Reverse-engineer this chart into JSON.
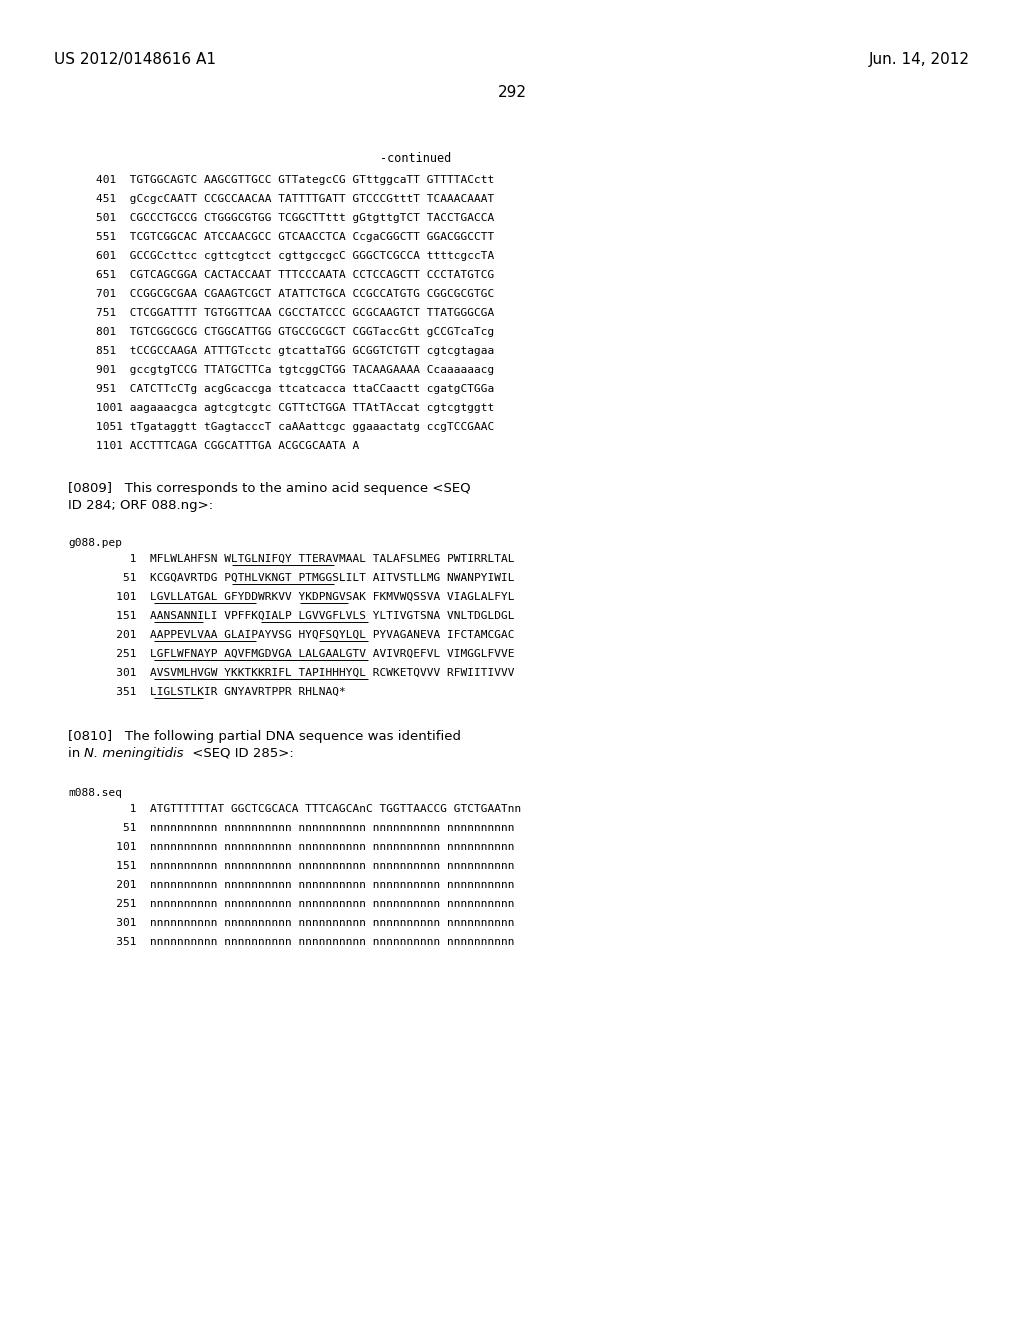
{
  "header_left": "US 2012/0148616 A1",
  "header_right": "Jun. 14, 2012",
  "page_number": "292",
  "continued_label": "-continued",
  "dna_lines": [
    "401  TGTGGCAGTC AAGCGTTGCC GTTategcCG GTttggcaTT GTTTTACctt",
    "451  gCcgcCAATT CCGCCAACAA TATTTTGATT GTCCCGtttT TCAAACAAAT",
    "501  CGCCCTGCCG CTGGGCGTGG TCGGCTTttt gGtgttgTCT TACCTGACCA",
    "551  TCGTCGGCAC ATCCAACGCC GTCAACCTCA CcgaCGGCTT GGACGGCCTT",
    "601  GCCGCcttcc cgttcgtcct cgttgccgcC GGGCTCGCCA ttttcgccTA",
    "651  CGTCAGCGGA CACTACCAAT TTTCCCAATA CCTCCAGCTT CCCTATGTCG",
    "701  CCGGCGCGAA CGAAGTCGCT ATATTCTGCA CCGCCATGTG CGGCGCGTGC",
    "751  CTCGGATTTT TGTGGTTCAA CGCCTATCCC GCGCAAGTCT TTATGGGCGA",
    "801  TGTCGGCGCG CTGGCATTGG GTGCCGCGCT CGGTaccGtt gCCGTcaTcg",
    "851  tCCGCCAAGA ATTTGTcctc gtcattaTGG GCGGTCTGTT cgtcgtagaa",
    "901  gccgtgTCCG TTATGCTTCa tgtcggCTGG TACAAGAAAA Ccaaaaaacg",
    "951  CATCTTcCTg acgGcaccga ttcatcacca ttaCCaactt cgatgCTGGa",
    "1001 aagaaacgca agtcgtcgtc CGTTtCTGGA TTAtTAccat cgtcgtggtt",
    "1051 tTgataggtt tGagtacccT caAAattcgc ggaaactatg ccgTCCGAAC",
    "1101 ACCTTTCAGA CGGCATTTGA ACGCGCAATA A"
  ],
  "para_0809_line1": "[0809]   This corresponds to the amino acid sequence <SEQ",
  "para_0809_line2": "ID 284; ORF 088.ng>:",
  "protein_label": "g088.pep",
  "protein_lines": [
    "     1  MFLWLAHFSN WLTGLNIFQY TTERAVMAAL TALAFSLMEG PWTIRRLTAL",
    "    51  KCGQAVRTDG PQTHLVKNGT PTMGGSLILT AITVSTLLMG NWANPYIWIL",
    "   101  LGVLLATGAL GFYDDWRKVV YKDPNGVSAK FKMVWQSSVA VIAGLALFYL",
    "   151  AANSANNILI VPFFKQIALP LGVVGFLVLS YLTIVGTSNA VNLTDGLDGL",
    "   201  AAPPEVLVAA GLAIPAYVSG HYQFSQYLQL PYVAGANEVA IFCTAMCGAC",
    "   251  LGFLWFNAYP AQVFMGDVGA LALGAALGTV AVIVRQEFVL VIMGGLFVVE",
    "   301  AVSVMLHVGW YKKTKKRIFL TAPIHHHYQL RCWKETQVVV RFWIITIVVV",
    "   351  LIGLSTLKIR GNYAVRTPPR RHLNAQ*"
  ],
  "para_0810_line1": "[0810]   The following partial DNA sequence was identified",
  "para_0810_line2_plain": "in ",
  "para_0810_line2_italic": "N. meningitidis",
  "para_0810_line2_end": " <SEQ ID 285>:",
  "dna2_label": "m088.seq",
  "dna2_lines": [
    "     1  ATGTTTTTTAT GGCTCGCACA TTTCAGCAnC TGGTTAACCG GTCTGAATnn",
    "    51  nnnnnnnnnn nnnnnnnnnn nnnnnnnnnn nnnnnnnnnn nnnnnnnnnn",
    "   101  nnnnnnnnnn nnnnnnnnnn nnnnnnnnnn nnnnnnnnnn nnnnnnnnnn",
    "   151  nnnnnnnnnn nnnnnnnnnn nnnnnnnnnn nnnnnnnnnn nnnnnnnnnn",
    "   201  nnnnnnnnnn nnnnnnnnnn nnnnnnnnnn nnnnnnnnnn nnnnnnnnnn",
    "   251  nnnnnnnnnn nnnnnnnnnn nnnnnnnnnn nnnnnnnnnn nnnnnnnnnn",
    "   301  nnnnnnnnnn nnnnnnnnnn nnnnnnnnnn nnnnnnnnnn nnnnnnnnnn",
    "   351  nnnnnnnnnn nnnnnnnnnn nnnnnnnnnn nnnnnnnnnn nnnnnnnnnn"
  ],
  "bg_color": "#ffffff",
  "text_color": "#000000"
}
